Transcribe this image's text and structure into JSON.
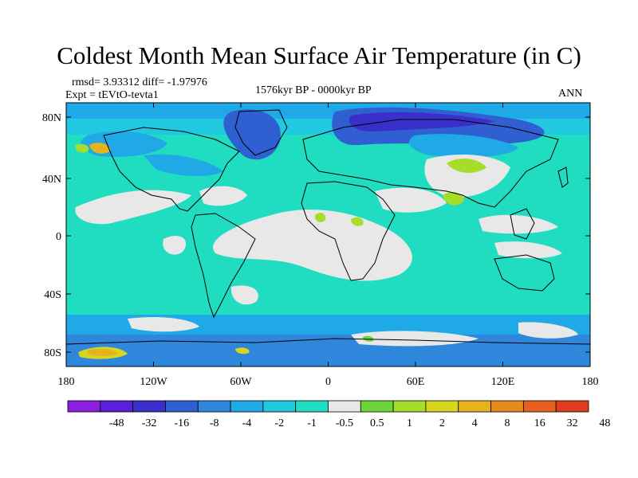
{
  "title": "Coldest Month Mean Surface Air Temperature (in C)",
  "stats": "rmsd= 3.93312 diff= -1.97976",
  "experiment": "Expt = tEVtO-tevta1",
  "period": "1576kyr BP - 0000kyr BP",
  "season": "ANN",
  "lat_ticks": [
    "80N",
    "40N",
    "0",
    "40S",
    "80S"
  ],
  "lon_ticks": [
    "180",
    "120W",
    "60W",
    "0",
    "60E",
    "120E",
    "180"
  ],
  "colorbar": {
    "labels": [
      "-48",
      "-32",
      "-16",
      "-8",
      "-4",
      "-2",
      "-1",
      "-0.5",
      "0.5",
      "1",
      "2",
      "4",
      "8",
      "16",
      "32",
      "48"
    ],
    "colors": [
      "#8a1fe0",
      "#5a1fd6",
      "#3a2fc8",
      "#2f5fd0",
      "#2f87dc",
      "#1fa9e6",
      "#20c9e0",
      "#20dcc0",
      "#e8e8e8",
      "#6fd43a",
      "#a6dc2a",
      "#d6d61f",
      "#e6b21f",
      "#e68a1f",
      "#e6601f",
      "#e03a1f"
    ]
  }
}
